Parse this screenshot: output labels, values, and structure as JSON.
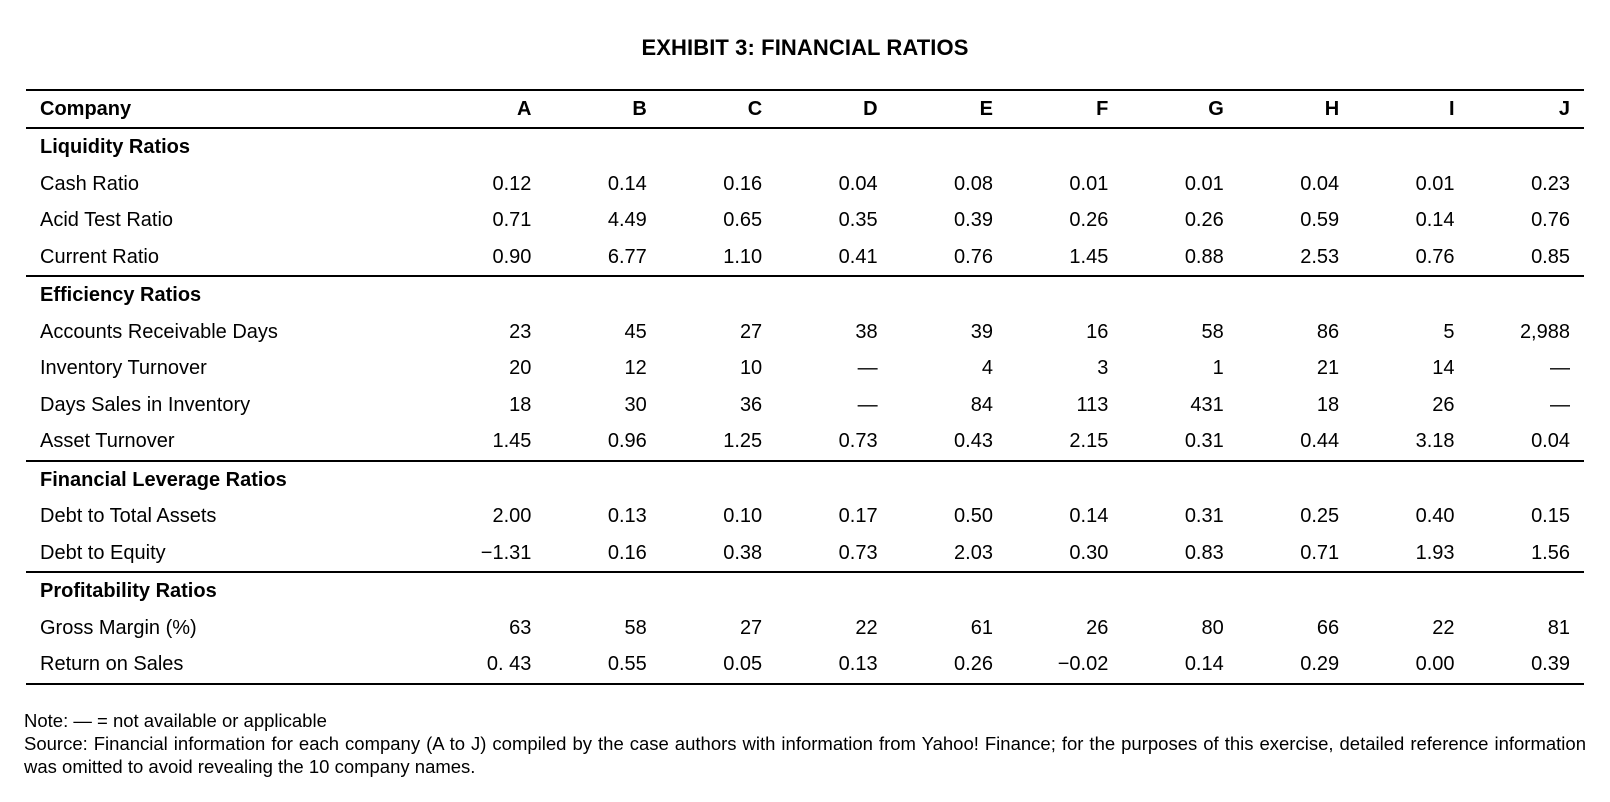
{
  "title": "EXHIBIT 3: FINANCIAL RATIOS",
  "table": {
    "header_label": "Company",
    "companies": [
      "A",
      "B",
      "C",
      "D",
      "E",
      "F",
      "G",
      "H",
      "I",
      "J"
    ],
    "sections": [
      {
        "name": "Liquidity Ratios",
        "rows": [
          {
            "label": "Cash Ratio",
            "values": [
              "0.12",
              "0.14",
              "0.16",
              "0.04",
              "0.08",
              "0.01",
              "0.01",
              "0.04",
              "0.01",
              "0.23"
            ]
          },
          {
            "label": "Acid Test Ratio",
            "values": [
              "0.71",
              "4.49",
              "0.65",
              "0.35",
              "0.39",
              "0.26",
              "0.26",
              "0.59",
              "0.14",
              "0.76"
            ]
          },
          {
            "label": "Current Ratio",
            "values": [
              "0.90",
              "6.77",
              "1.10",
              "0.41",
              "0.76",
              "1.45",
              "0.88",
              "2.53",
              "0.76",
              "0.85"
            ]
          }
        ]
      },
      {
        "name": "Efficiency Ratios",
        "rows": [
          {
            "label": "Accounts Receivable Days",
            "values": [
              "23",
              "45",
              "27",
              "38",
              "39",
              "16",
              "58",
              "86",
              "5",
              "2,988"
            ]
          },
          {
            "label": "Inventory Turnover",
            "values": [
              "20",
              "12",
              "10",
              "—",
              "4",
              "3",
              "1",
              "21",
              "14",
              "—"
            ]
          },
          {
            "label": "Days Sales in Inventory",
            "values": [
              "18",
              "30",
              "36",
              "—",
              "84",
              "113",
              "431",
              "18",
              "26",
              "—"
            ]
          },
          {
            "label": "Asset Turnover",
            "values": [
              "1.45",
              "0.96",
              "1.25",
              "0.73",
              "0.43",
              "2.15",
              "0.31",
              "0.44",
              "3.18",
              "0.04"
            ]
          }
        ]
      },
      {
        "name": "Financial Leverage Ratios",
        "rows": [
          {
            "label": "Debt to Total Assets",
            "values": [
              "2.00",
              "0.13",
              "0.10",
              "0.17",
              "0.50",
              "0.14",
              "0.31",
              "0.25",
              "0.40",
              "0.15"
            ]
          },
          {
            "label": "Debt to Equity",
            "values": [
              "−1.31",
              "0.16",
              "0.38",
              "0.73",
              "2.03",
              "0.30",
              "0.83",
              "0.71",
              "1.93",
              "1.56"
            ]
          }
        ]
      },
      {
        "name": "Profitability Ratios",
        "rows": [
          {
            "label": "Gross Margin (%)",
            "values": [
              "63",
              "58",
              "27",
              "22",
              "61",
              "26",
              "80",
              "66",
              "22",
              "81"
            ]
          },
          {
            "label": "Return on Sales",
            "values": [
              "0. 43",
              "0.55",
              "0.05",
              "0.13",
              "0.26",
              "−0.02",
              "0.14",
              "0.29",
              "0.00",
              "0.39"
            ]
          }
        ]
      }
    ]
  },
  "notes": {
    "note": "Note: — = not available or applicable",
    "source": "Source: Financial information for each company (A to J) compiled by the case authors with information from Yahoo! Finance; for the purposes of this exercise, detailed reference information was omitted to avoid revealing the 10 company names."
  }
}
